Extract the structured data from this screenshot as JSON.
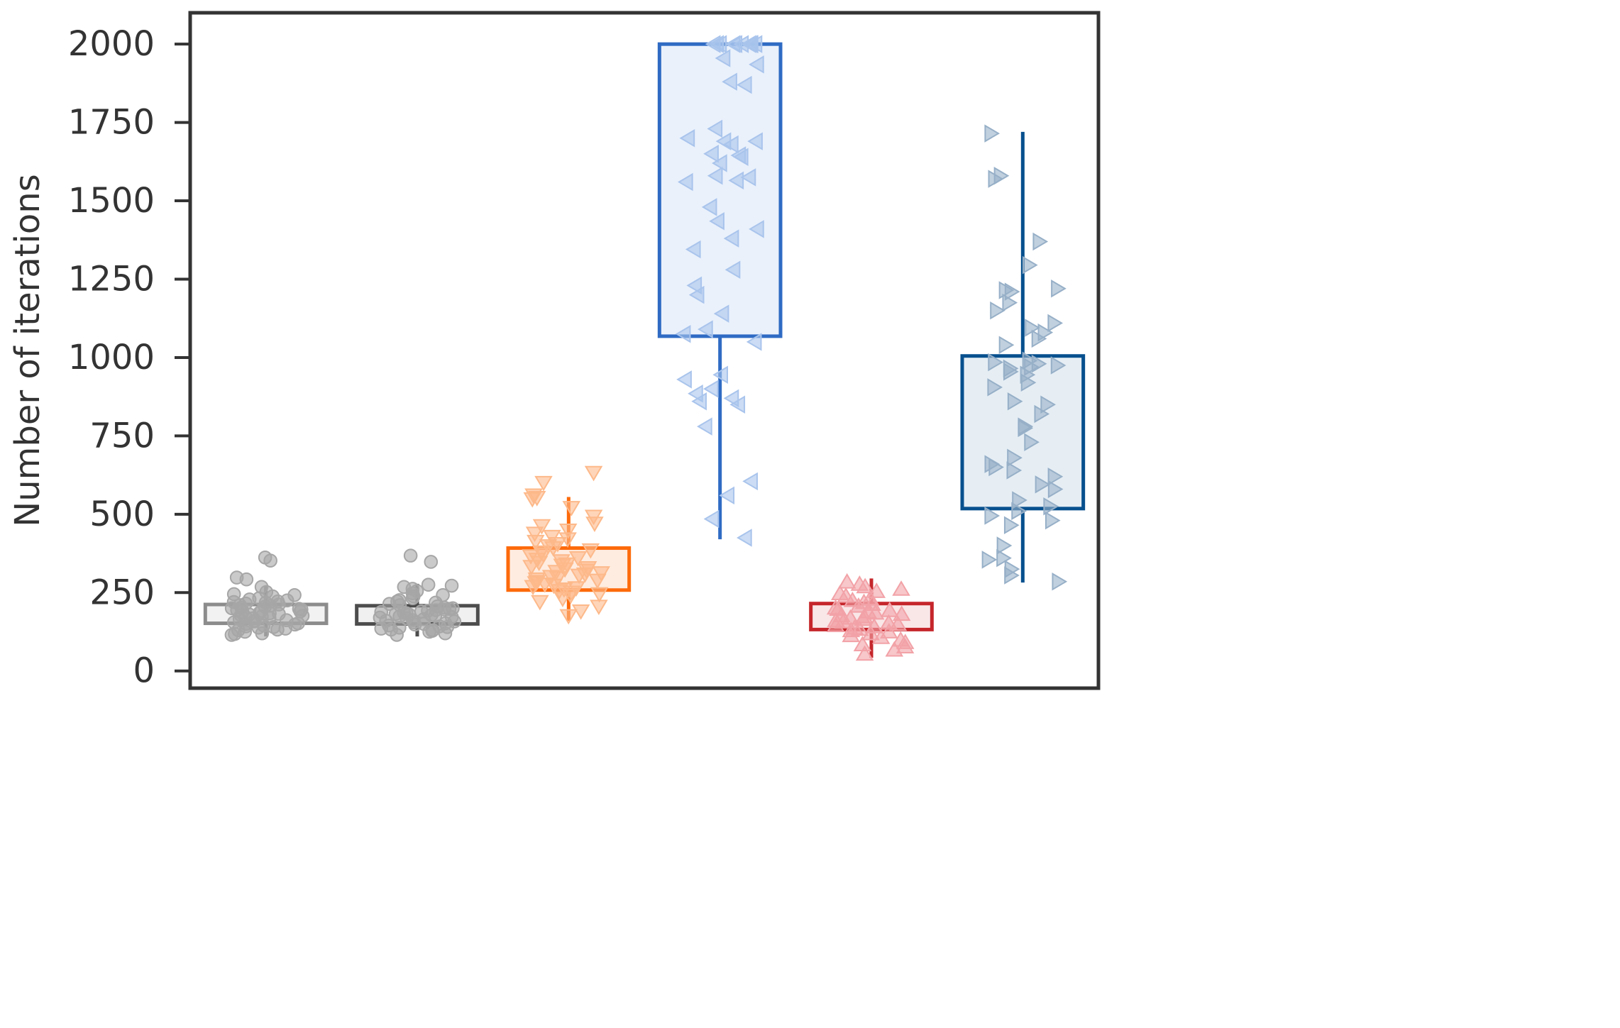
{
  "chart_data": {
    "type": "box",
    "title": "",
    "xlabel": "",
    "ylabel": "Number of iterations",
    "ylim": [
      -55,
      2100
    ],
    "yticks": [
      0,
      250,
      500,
      750,
      1000,
      1250,
      1500,
      1750,
      2000
    ],
    "ytick_labels": [
      "0",
      "250",
      "500",
      "750",
      "1000",
      "1250",
      "1500",
      "1750",
      "2000"
    ],
    "xticks_visible": false,
    "grid": false,
    "legend": "none",
    "series": [
      {
        "color": "#8c8c8c",
        "fill": "#f2f2f2",
        "point_color": "#a6a6a6",
        "marker": "circle",
        "box": {
          "q1": 152,
          "q3": 212,
          "whisker_low": 110,
          "whisker_high": 272
        },
        "points": [
          362,
          352,
          298,
          292,
          268,
          252,
          245,
          242,
          238,
          232,
          228,
          225,
          222,
          220,
          218,
          215,
          212,
          210,
          208,
          205,
          202,
          200,
          198,
          196,
          194,
          192,
          190,
          188,
          186,
          184,
          182,
          180,
          178,
          176,
          174,
          172,
          170,
          168,
          165,
          162,
          160,
          158,
          155,
          152,
          150,
          148,
          145,
          142,
          140,
          138,
          135,
          132,
          130,
          125,
          120,
          118,
          115
        ]
      },
      {
        "color": "#4d4d4d",
        "fill": "#f0f0f0",
        "point_color": "#a6a6a6",
        "marker": "circle",
        "box": {
          "q1": 150,
          "q3": 208,
          "whisker_low": 110,
          "whisker_high": 278
        },
        "points": [
          368,
          348,
          275,
          272,
          268,
          262,
          255,
          248,
          242,
          238,
          232,
          226,
          222,
          218,
          214,
          210,
          206,
          202,
          200,
          198,
          196,
          194,
          192,
          190,
          188,
          186,
          184,
          182,
          180,
          178,
          176,
          174,
          172,
          170,
          168,
          165,
          162,
          160,
          158,
          155,
          152,
          150,
          148,
          145,
          142,
          140,
          138,
          135,
          132,
          130,
          128,
          125,
          120,
          115
        ]
      },
      {
        "color": "#fd6a0b",
        "fill": "#feece0",
        "point_color": "#fdb98a",
        "marker": "triangle-down",
        "box": {
          "q1": 258,
          "q3": 392,
          "whisker_low": 160,
          "whisker_high": 555
        },
        "points": [
          632,
          600,
          560,
          552,
          548,
          520,
          492,
          470,
          462,
          448,
          438,
          428,
          420,
          412,
          405,
          398,
          392,
          385,
          378,
          372,
          366,
          360,
          355,
          350,
          345,
          340,
          336,
          332,
          328,
          324,
          320,
          316,
          312,
          308,
          304,
          300,
          296,
          292,
          288,
          284,
          280,
          276,
          272,
          268,
          264,
          260,
          255,
          250,
          245,
          240,
          230,
          220,
          205,
          190,
          175
        ]
      },
      {
        "color": "#2f6bc4",
        "fill": "#eaf1fb",
        "point_color": "#a9c4ec",
        "marker": "triangle-left",
        "box": {
          "q1": 1068,
          "q3": 2000,
          "whisker_low": 420,
          "whisker_high": 2000
        },
        "points": [
          2000,
          2000,
          2000,
          2000,
          2000,
          2000,
          2000,
          2000,
          2000,
          2000,
          1955,
          1935,
          1880,
          1870,
          1730,
          1700,
          1690,
          1690,
          1680,
          1650,
          1645,
          1640,
          1620,
          1580,
          1575,
          1565,
          1560,
          1480,
          1435,
          1410,
          1380,
          1345,
          1280,
          1230,
          1200,
          1140,
          1090,
          1075,
          1050,
          945,
          930,
          900,
          885,
          870,
          860,
          850,
          780,
          605,
          560,
          485,
          425
        ]
      },
      {
        "color": "#c5262b",
        "fill": "#f9e7e8",
        "point_color": "#f2a2a7",
        "marker": "triangle-up",
        "box": {
          "q1": 132,
          "q3": 215,
          "whisker_low": 42,
          "whisker_high": 295
        },
        "points": [
          285,
          278,
          270,
          262,
          255,
          248,
          240,
          232,
          226,
          220,
          214,
          208,
          202,
          198,
          194,
          190,
          186,
          182,
          178,
          174,
          170,
          166,
          162,
          158,
          154,
          150,
          146,
          142,
          138,
          134,
          130,
          126,
          120,
          114,
          108,
          100,
          92,
          85,
          78,
          68,
          55
        ]
      },
      {
        "color": "#08508e",
        "fill": "#e6eef4",
        "point_color": "#97b0c8",
        "marker": "triangle-right",
        "box": {
          "q1": 518,
          "q3": 1005,
          "whisker_low": 282,
          "whisker_high": 1720
        },
        "points": [
          1715,
          1580,
          1570,
          1370,
          1295,
          1220,
          1215,
          1210,
          1175,
          1150,
          1110,
          1095,
          1080,
          1060,
          1040,
          990,
          985,
          980,
          975,
          970,
          965,
          955,
          945,
          920,
          905,
          860,
          850,
          820,
          780,
          775,
          730,
          680,
          660,
          650,
          640,
          620,
          595,
          580,
          545,
          525,
          510,
          495,
          480,
          465,
          400,
          360,
          355,
          325,
          305,
          285
        ]
      }
    ]
  }
}
